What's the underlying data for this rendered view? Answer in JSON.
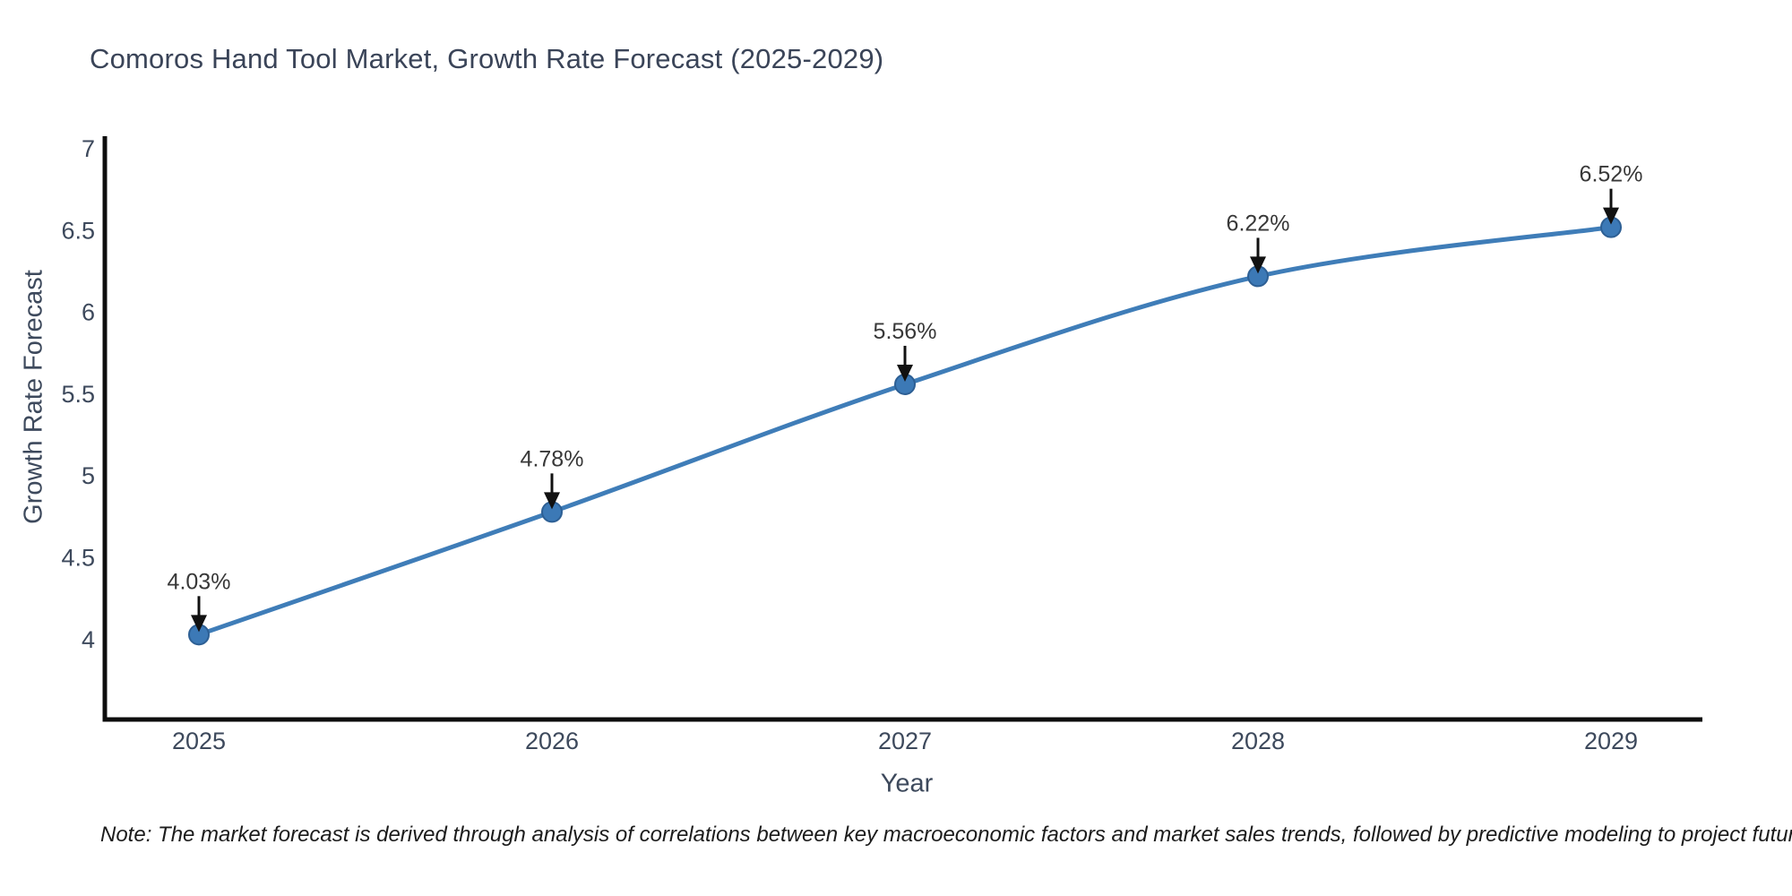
{
  "chart_data": {
    "type": "line",
    "title": "Comoros Hand Tool Market, Growth Rate Forecast (2025-2029)",
    "xlabel": "Year",
    "ylabel": "Growth Rate Forecast",
    "x": [
      2025,
      2026,
      2027,
      2028,
      2029
    ],
    "series": [
      {
        "name": "Growth Rate Forecast",
        "values": [
          4.03,
          4.78,
          5.56,
          6.22,
          6.52
        ],
        "point_labels": [
          "4.03%",
          "4.78%",
          "5.56%",
          "6.22%",
          "6.52%"
        ]
      }
    ],
    "xticks": [
      "2025",
      "2026",
      "2027",
      "2028",
      "2029"
    ],
    "yticks": [
      "7",
      "6.5",
      "6",
      "5.5",
      "5",
      "4.5",
      "4"
    ],
    "ytick_values": [
      7,
      6.5,
      6,
      5.5,
      5,
      4.5,
      4
    ],
    "ylim": [
      3.5,
      7.05
    ],
    "grid": false,
    "legend_position": "none",
    "marker_style": "circle",
    "annotation_arrows": true,
    "colors": {
      "line": "#3f7db8",
      "marker_fill": "#3c79b6",
      "marker_edge": "#2d5f94",
      "arrow": "#111111",
      "axis_line": "#0d0d0d",
      "tick_label": "#3d495c",
      "title_text": "#3a4458",
      "annotation_text": "#383838"
    }
  },
  "note": "Note: The market forecast is derived through analysis of correlations between key macroeconomic factors and market sales trends, followed by predictive modeling to project future sales"
}
